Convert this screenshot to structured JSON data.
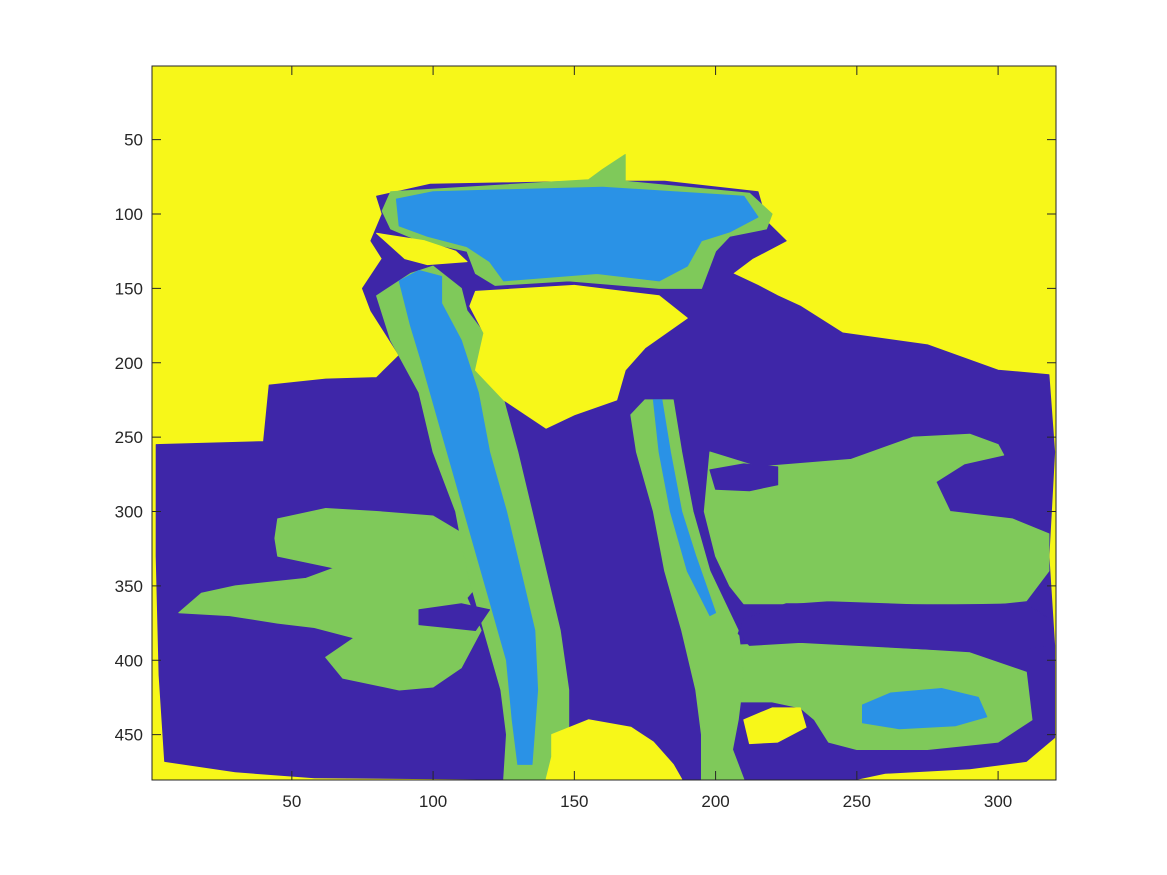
{
  "chart_data": {
    "type": "heatmap",
    "description_colormap": "parula",
    "title": "",
    "xlabel": "",
    "ylabel": "",
    "xlim": [
      0.5,
      320.5
    ],
    "ylim": [
      0.5,
      480.5
    ],
    "y_reversed": true,
    "grid": false,
    "legend": "none",
    "x_ticks": [
      50,
      100,
      150,
      200,
      250,
      300
    ],
    "y_ticks": [
      50,
      100,
      150,
      200,
      250,
      300,
      350,
      400,
      450
    ],
    "x_tick_labels": [
      "50",
      "100",
      "150",
      "200",
      "250",
      "300"
    ],
    "y_tick_labels": [
      "50",
      "100",
      "150",
      "200",
      "250",
      "300",
      "350",
      "400",
      "450"
    ],
    "class_colors": {
      "class_1": "#3E26A8",
      "class_2": "#2A92E6",
      "class_3": "#7FC95A",
      "class_4": "#F7F719"
    },
    "regions": [
      {
        "name": "background",
        "class": "class_4",
        "points": [
          [
            0.5,
            0.5
          ],
          [
            320.5,
            0.5
          ],
          [
            320.5,
            480.5
          ],
          [
            0.5,
            480.5
          ]
        ]
      },
      {
        "name": "dark-body",
        "class": "class_1",
        "points": [
          [
            2,
            255
          ],
          [
            40,
            253
          ],
          [
            42,
            215
          ],
          [
            62,
            211
          ],
          [
            80,
            210
          ],
          [
            88,
            195
          ],
          [
            78,
            165
          ],
          [
            75,
            150
          ],
          [
            82,
            130
          ],
          [
            78,
            118
          ],
          [
            82,
            100
          ],
          [
            80,
            88
          ],
          [
            99,
            80
          ],
          [
            155,
            78
          ],
          [
            182,
            78
          ],
          [
            215,
            85
          ],
          [
            218,
            105
          ],
          [
            225,
            118
          ],
          [
            213,
            130
          ],
          [
            206,
            140
          ],
          [
            215,
            148
          ],
          [
            222,
            155
          ],
          [
            230,
            162
          ],
          [
            245,
            180
          ],
          [
            275,
            188
          ],
          [
            300,
            205
          ],
          [
            318,
            208
          ],
          [
            320,
            260
          ],
          [
            318,
            330
          ],
          [
            320,
            390
          ],
          [
            320,
            452
          ],
          [
            310,
            468
          ],
          [
            290,
            473
          ],
          [
            260,
            476
          ],
          [
            250,
            480
          ],
          [
            130,
            480
          ],
          [
            58,
            479
          ],
          [
            30,
            475
          ],
          [
            5,
            468
          ],
          [
            3,
            410
          ],
          [
            2,
            330
          ]
        ]
      },
      {
        "name": "green-left-lobe",
        "class": "class_3",
        "points": [
          [
            45,
            305
          ],
          [
            62,
            298
          ],
          [
            80,
            300
          ],
          [
            100,
            303
          ],
          [
            115,
            320
          ],
          [
            120,
            340
          ],
          [
            112,
            358
          ],
          [
            117,
            380
          ],
          [
            110,
            405
          ],
          [
            100,
            418
          ],
          [
            88,
            420
          ],
          [
            68,
            412
          ],
          [
            62,
            398
          ],
          [
            72,
            385
          ],
          [
            58,
            378
          ],
          [
            45,
            375
          ],
          [
            28,
            370
          ],
          [
            10,
            368
          ],
          [
            18,
            355
          ],
          [
            30,
            350
          ],
          [
            55,
            345
          ],
          [
            65,
            338
          ],
          [
            45,
            330
          ],
          [
            44,
            318
          ]
        ]
      },
      {
        "name": "green-right-lobe",
        "class": "class_3",
        "points": [
          [
            198,
            260
          ],
          [
            215,
            270
          ],
          [
            248,
            265
          ],
          [
            270,
            250
          ],
          [
            290,
            248
          ],
          [
            300,
            255
          ],
          [
            302,
            262
          ],
          [
            288,
            268
          ],
          [
            278,
            280
          ],
          [
            283,
            300
          ],
          [
            305,
            305
          ],
          [
            318,
            315
          ],
          [
            318,
            340
          ],
          [
            310,
            360
          ],
          [
            300,
            362
          ],
          [
            285,
            362
          ],
          [
            270,
            362
          ],
          [
            240,
            360
          ],
          [
            225,
            362
          ],
          [
            210,
            362
          ],
          [
            205,
            350
          ],
          [
            200,
            330
          ],
          [
            196,
            300
          ]
        ]
      },
      {
        "name": "green-bottom-right",
        "class": "class_3",
        "points": [
          [
            205,
            390
          ],
          [
            230,
            388
          ],
          [
            265,
            392
          ],
          [
            290,
            395
          ],
          [
            310,
            408
          ],
          [
            312,
            440
          ],
          [
            300,
            455
          ],
          [
            275,
            460
          ],
          [
            250,
            460
          ],
          [
            240,
            455
          ],
          [
            235,
            440
          ],
          [
            230,
            432
          ],
          [
            220,
            428
          ],
          [
            208,
            428
          ],
          [
            205,
            410
          ]
        ]
      },
      {
        "name": "green-left-duct",
        "class": "class_3",
        "points": [
          [
            80,
            155
          ],
          [
            92,
            140
          ],
          [
            100,
            135
          ],
          [
            110,
            150
          ],
          [
            112,
            165
          ],
          [
            118,
            180
          ],
          [
            125,
            225
          ],
          [
            130,
            260
          ],
          [
            135,
            300
          ],
          [
            140,
            340
          ],
          [
            145,
            380
          ],
          [
            148,
            420
          ],
          [
            148,
            450
          ],
          [
            143,
            480
          ],
          [
            125,
            480
          ],
          [
            126,
            450
          ],
          [
            124,
            420
          ],
          [
            118,
            380
          ],
          [
            112,
            340
          ],
          [
            108,
            300
          ],
          [
            100,
            260
          ],
          [
            95,
            220
          ],
          [
            85,
            185
          ]
        ]
      },
      {
        "name": "green-right-duct",
        "class": "class_3",
        "points": [
          [
            175,
            225
          ],
          [
            185,
            225
          ],
          [
            188,
            260
          ],
          [
            192,
            300
          ],
          [
            198,
            340
          ],
          [
            208,
            380
          ],
          [
            210,
            410
          ],
          [
            208,
            440
          ],
          [
            206,
            460
          ],
          [
            210,
            480
          ],
          [
            195,
            480
          ],
          [
            195,
            450
          ],
          [
            193,
            420
          ],
          [
            188,
            380
          ],
          [
            182,
            340
          ],
          [
            178,
            300
          ],
          [
            172,
            260
          ],
          [
            170,
            235
          ]
        ]
      },
      {
        "name": "green-cap",
        "class": "class_3",
        "points": [
          [
            85,
            85
          ],
          [
            155,
            77
          ],
          [
            160,
            70
          ],
          [
            168,
            60
          ],
          [
            168,
            78
          ],
          [
            212,
            86
          ],
          [
            220,
            100
          ],
          [
            218,
            110
          ],
          [
            205,
            115
          ],
          [
            200,
            125
          ],
          [
            195,
            150
          ],
          [
            180,
            150
          ],
          [
            148,
            145
          ],
          [
            122,
            148
          ],
          [
            115,
            140
          ],
          [
            112,
            125
          ],
          [
            95,
            118
          ],
          [
            85,
            110
          ],
          [
            82,
            98
          ]
        ]
      },
      {
        "name": "blue-cap",
        "class": "class_2",
        "points": [
          [
            87,
            90
          ],
          [
            100,
            85
          ],
          [
            160,
            82
          ],
          [
            210,
            88
          ],
          [
            215,
            102
          ],
          [
            205,
            112
          ],
          [
            195,
            118
          ],
          [
            190,
            135
          ],
          [
            180,
            145
          ],
          [
            158,
            140
          ],
          [
            125,
            145
          ],
          [
            120,
            132
          ],
          [
            112,
            122
          ],
          [
            98,
            115
          ],
          [
            88,
            108
          ]
        ]
      },
      {
        "name": "blue-left-duct",
        "class": "class_2",
        "points": [
          [
            88,
            145
          ],
          [
            95,
            138
          ],
          [
            103,
            142
          ],
          [
            103,
            160
          ],
          [
            110,
            185
          ],
          [
            116,
            220
          ],
          [
            120,
            260
          ],
          [
            126,
            300
          ],
          [
            131,
            340
          ],
          [
            136,
            380
          ],
          [
            137,
            420
          ],
          [
            135,
            470
          ],
          [
            130,
            470
          ],
          [
            128,
            440
          ],
          [
            126,
            400
          ],
          [
            120,
            360
          ],
          [
            114,
            320
          ],
          [
            108,
            280
          ],
          [
            102,
            240
          ],
          [
            96,
            200
          ],
          [
            92,
            175
          ]
        ]
      },
      {
        "name": "blue-right-duct",
        "class": "class_2",
        "points": [
          [
            178,
            225
          ],
          [
            181,
            225
          ],
          [
            184,
            260
          ],
          [
            188,
            300
          ],
          [
            193,
            330
          ],
          [
            200,
            368
          ],
          [
            198,
            370
          ],
          [
            190,
            340
          ],
          [
            184,
            300
          ],
          [
            180,
            260
          ]
        ]
      },
      {
        "name": "blue-bottom-oval",
        "class": "class_2",
        "points": [
          [
            252,
            430
          ],
          [
            262,
            422
          ],
          [
            280,
            419
          ],
          [
            293,
            425
          ],
          [
            296,
            438
          ],
          [
            285,
            444
          ],
          [
            265,
            446
          ],
          [
            252,
            442
          ]
        ]
      },
      {
        "name": "yellow-left-notch",
        "class": "class_4",
        "points": [
          [
            80,
            113
          ],
          [
            97,
            118
          ],
          [
            108,
            125
          ],
          [
            112,
            132
          ],
          [
            98,
            134
          ],
          [
            90,
            130
          ]
        ]
      },
      {
        "name": "yellow-inner-pocket",
        "class": "class_4",
        "points": [
          [
            115,
            152
          ],
          [
            150,
            148
          ],
          [
            180,
            155
          ],
          [
            190,
            170
          ],
          [
            175,
            190
          ],
          [
            168,
            205
          ],
          [
            165,
            225
          ],
          [
            150,
            235
          ],
          [
            140,
            244
          ],
          [
            125,
            225
          ],
          [
            115,
            205
          ],
          [
            118,
            180
          ],
          [
            113,
            162
          ]
        ]
      },
      {
        "name": "yellow-bottom-patch",
        "class": "class_4",
        "points": [
          [
            142,
            450
          ],
          [
            155,
            440
          ],
          [
            170,
            445
          ],
          [
            178,
            455
          ],
          [
            185,
            470
          ],
          [
            188,
            480
          ],
          [
            140,
            480
          ],
          [
            142,
            465
          ]
        ]
      },
      {
        "name": "yellow-bottom-loop",
        "class": "class_4",
        "points": [
          [
            210,
            440
          ],
          [
            220,
            432
          ],
          [
            230,
            432
          ],
          [
            232,
            445
          ],
          [
            222,
            455
          ],
          [
            212,
            456
          ]
        ]
      },
      {
        "name": "dark-right-pocket",
        "class": "class_1",
        "points": [
          [
            210,
            372
          ],
          [
            225,
            362
          ],
          [
            245,
            362
          ],
          [
            280,
            363
          ],
          [
            310,
            362
          ],
          [
            318,
            372
          ],
          [
            318,
            390
          ],
          [
            305,
            395
          ],
          [
            270,
            392
          ],
          [
            230,
            388
          ],
          [
            212,
            390
          ],
          [
            208,
            382
          ]
        ]
      },
      {
        "name": "dark-right-blob",
        "class": "class_1",
        "points": [
          [
            198,
            272
          ],
          [
            210,
            268
          ],
          [
            222,
            270
          ],
          [
            222,
            282
          ],
          [
            212,
            286
          ],
          [
            200,
            285
          ]
        ]
      },
      {
        "name": "dark-left-blob",
        "class": "class_1",
        "points": [
          [
            95,
            366
          ],
          [
            110,
            362
          ],
          [
            120,
            366
          ],
          [
            115,
            380
          ],
          [
            105,
            378
          ],
          [
            95,
            376
          ]
        ]
      }
    ]
  }
}
